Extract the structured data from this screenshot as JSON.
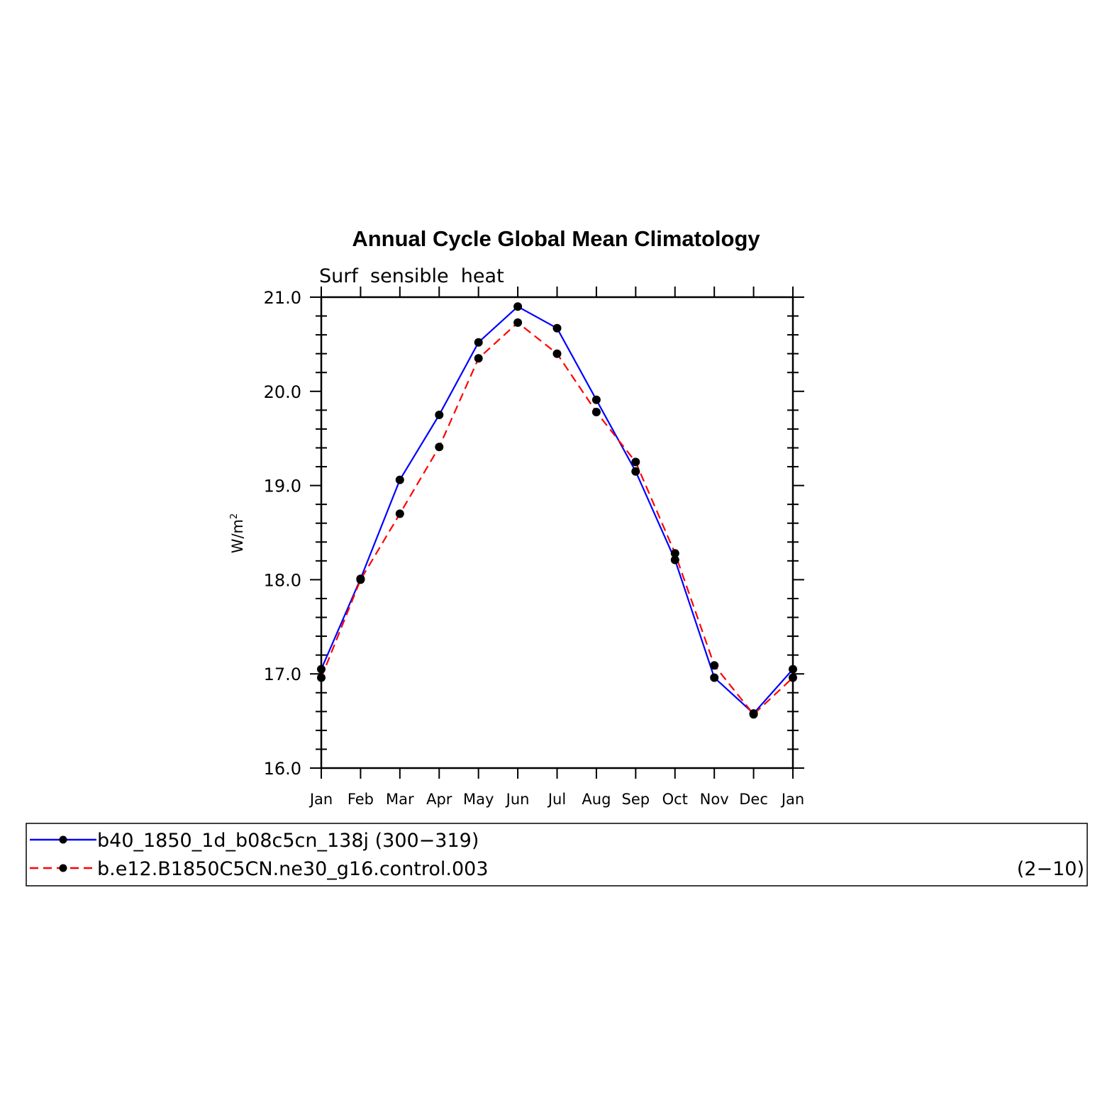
{
  "chart_data": {
    "type": "line",
    "title": "Annual Cycle Global Mean Climatology",
    "subtitle": "Surf  sensible  heat",
    "ylabel": "W/m",
    "ylabel_sup": "2",
    "ylim": [
      16.0,
      21.0
    ],
    "yticks": [
      "16.0",
      "17.0",
      "18.0",
      "19.0",
      "20.0",
      "21.0"
    ],
    "categories": [
      "Jan",
      "Feb",
      "Mar",
      "Apr",
      "May",
      "Jun",
      "Jul",
      "Aug",
      "Sep",
      "Oct",
      "Nov",
      "Dec",
      "Jan"
    ],
    "series": [
      {
        "name": "b40_1850_1d_b08c5cn_138j (300−319)",
        "color": "#0000ff",
        "dash": "solid",
        "values": [
          17.05,
          18.01,
          19.06,
          19.75,
          20.52,
          20.9,
          20.67,
          19.91,
          19.15,
          18.21,
          16.96,
          16.58,
          17.05
        ]
      },
      {
        "name": "b.e12.B1850C5CN.ne30_g16.control.003",
        "color": "#ff0000",
        "dash": "dashed",
        "values": [
          16.96,
          18.0,
          18.7,
          19.41,
          20.35,
          20.73,
          20.4,
          19.78,
          19.25,
          18.28,
          17.09,
          16.57,
          16.96
        ]
      }
    ],
    "legend": {
      "placement": "bottom",
      "right_note": "(2−10)"
    }
  }
}
